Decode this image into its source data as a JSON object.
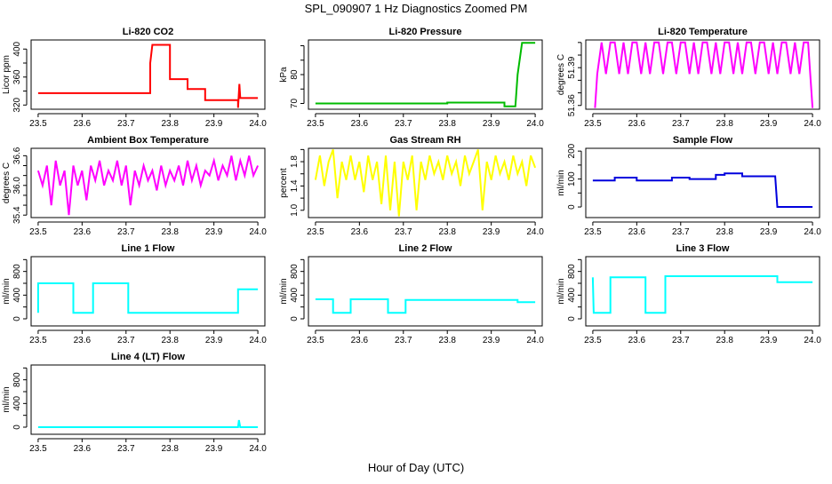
{
  "title": "SPL_090907  1 Hz Diagnostics Zoomed PM",
  "xlabel": "Hour of Day (UTC)",
  "chart_data": [
    {
      "type": "line",
      "title": "Li-820 CO2",
      "ylabel": "Licor ppm",
      "color": "#ff0000",
      "ylim": [
        314,
        413
      ],
      "yticks": [
        320,
        340,
        360,
        380,
        400
      ],
      "ytick_labels": [
        "320",
        "",
        "360",
        "",
        "400"
      ],
      "x": [
        23.5,
        23.755,
        23.755,
        23.76,
        23.8,
        23.8,
        23.84,
        23.84,
        23.88,
        23.88,
        23.955,
        23.955,
        23.958,
        23.96,
        24.0
      ],
      "y": [
        337,
        337,
        380,
        406,
        406,
        357,
        357,
        343,
        343,
        327,
        327,
        316,
        350,
        330,
        330
      ]
    },
    {
      "type": "line",
      "title": "Li-820 Pressure",
      "ylabel": "kPa",
      "color": "#00bb00",
      "ylim": [
        68,
        92
      ],
      "yticks": [
        70,
        75,
        80,
        85,
        90
      ],
      "ytick_labels": [
        "70",
        "",
        "80",
        "",
        ""
      ],
      "x": [
        23.5,
        23.8,
        23.8,
        23.93,
        23.93,
        23.955,
        23.96,
        23.97,
        24.0
      ],
      "y": [
        70,
        70,
        70.3,
        70.3,
        69,
        69,
        80,
        91,
        91
      ]
    },
    {
      "type": "line",
      "title": "Li-820 Temperature",
      "ylabel": "degrees C",
      "color": "#ff00ff",
      "ylim": [
        51.357,
        51.412
      ],
      "yticks": [
        51.36,
        51.37,
        51.38,
        51.39,
        51.4,
        51.41
      ],
      "ytick_labels": [
        "51.36",
        "",
        "",
        "51.39",
        "",
        ""
      ],
      "x": [
        23.505,
        23.51,
        23.52,
        23.53,
        23.54,
        23.55,
        23.56,
        23.57,
        23.58,
        23.59,
        23.6,
        23.61,
        23.62,
        23.63,
        23.64,
        23.65,
        23.66,
        23.67,
        23.68,
        23.69,
        23.7,
        23.71,
        23.72,
        23.73,
        23.74,
        23.75,
        23.76,
        23.77,
        23.78,
        23.79,
        23.8,
        23.81,
        23.82,
        23.83,
        23.84,
        23.85,
        23.86,
        23.87,
        23.88,
        23.89,
        23.9,
        23.91,
        23.92,
        23.93,
        23.94,
        23.95,
        23.96,
        23.97,
        23.98,
        23.99,
        24.0
      ],
      "y": [
        51.358,
        51.385,
        51.41,
        51.385,
        51.41,
        51.41,
        51.385,
        51.41,
        51.385,
        51.41,
        51.41,
        51.385,
        51.41,
        51.385,
        51.41,
        51.41,
        51.385,
        51.41,
        51.41,
        51.385,
        51.41,
        51.41,
        51.385,
        51.41,
        51.385,
        51.41,
        51.41,
        51.385,
        51.41,
        51.385,
        51.41,
        51.41,
        51.385,
        51.41,
        51.385,
        51.41,
        51.41,
        51.385,
        51.41,
        51.41,
        51.385,
        51.41,
        51.385,
        51.41,
        51.41,
        51.385,
        51.41,
        51.385,
        51.41,
        51.41,
        51.358
      ]
    },
    {
      "type": "line",
      "title": "Ambient Box Temperature",
      "ylabel": "degrees C",
      "color": "#ff00ff",
      "ylim": [
        35.35,
        36.75
      ],
      "yticks": [
        35.4,
        35.6,
        35.8,
        36.0,
        36.2,
        36.4,
        36.6
      ],
      "ytick_labels": [
        "35.4",
        "",
        "",
        "36.0",
        "",
        "",
        "36.6"
      ],
      "x": [
        23.5,
        23.51,
        23.52,
        23.53,
        23.54,
        23.55,
        23.56,
        23.57,
        23.58,
        23.59,
        23.6,
        23.61,
        23.62,
        23.63,
        23.64,
        23.65,
        23.66,
        23.67,
        23.68,
        23.69,
        23.7,
        23.71,
        23.72,
        23.73,
        23.74,
        23.75,
        23.76,
        23.77,
        23.78,
        23.79,
        23.8,
        23.81,
        23.82,
        23.83,
        23.84,
        23.85,
        23.86,
        23.87,
        23.88,
        23.89,
        23.9,
        23.91,
        23.92,
        23.93,
        23.94,
        23.95,
        23.96,
        23.97,
        23.98,
        23.99,
        24.0
      ],
      "y": [
        36.3,
        36.0,
        36.4,
        35.6,
        36.5,
        36.0,
        36.3,
        35.4,
        36.4,
        36.0,
        36.3,
        35.7,
        36.4,
        36.1,
        36.5,
        36.0,
        36.3,
        36.1,
        36.5,
        36.0,
        36.4,
        35.6,
        36.3,
        36.0,
        36.4,
        36.1,
        36.3,
        35.9,
        36.4,
        36.0,
        36.3,
        36.1,
        36.4,
        36.0,
        36.5,
        36.1,
        36.4,
        36.0,
        36.3,
        36.2,
        36.5,
        36.1,
        36.4,
        36.2,
        36.6,
        36.1,
        36.5,
        36.2,
        36.6,
        36.2,
        36.4
      ]
    },
    {
      "type": "line",
      "title": "Gas Stream RH",
      "ylabel": "percent",
      "color": "#ffff00",
      "ylim": [
        0.88,
        2.02
      ],
      "yticks": [
        1.0,
        1.2,
        1.4,
        1.6,
        1.8,
        2.0
      ],
      "ytick_labels": [
        "1.0",
        "",
        "1.4",
        "",
        "1.8",
        ""
      ],
      "x": [
        23.5,
        23.51,
        23.52,
        23.53,
        23.54,
        23.55,
        23.56,
        23.57,
        23.58,
        23.59,
        23.6,
        23.61,
        23.62,
        23.63,
        23.64,
        23.65,
        23.66,
        23.67,
        23.68,
        23.69,
        23.7,
        23.71,
        23.72,
        23.73,
        23.74,
        23.75,
        23.76,
        23.77,
        23.78,
        23.79,
        23.8,
        23.81,
        23.82,
        23.83,
        23.84,
        23.85,
        23.86,
        23.87,
        23.88,
        23.89,
        23.9,
        23.91,
        23.92,
        23.93,
        23.94,
        23.95,
        23.96,
        23.97,
        23.98,
        23.99,
        24.0
      ],
      "y": [
        1.5,
        1.9,
        1.4,
        1.8,
        2.0,
        1.2,
        1.8,
        1.5,
        1.9,
        1.5,
        1.8,
        1.3,
        1.9,
        1.5,
        1.8,
        1.1,
        1.9,
        1.0,
        1.8,
        0.9,
        1.8,
        1.5,
        1.9,
        1.0,
        1.8,
        1.5,
        1.9,
        1.6,
        1.8,
        1.5,
        1.9,
        1.6,
        1.8,
        1.4,
        1.9,
        1.6,
        1.8,
        2.0,
        1.0,
        1.8,
        1.5,
        1.9,
        1.6,
        1.8,
        1.5,
        1.9,
        1.6,
        1.8,
        1.4,
        1.9,
        1.7
      ]
    },
    {
      "type": "line",
      "title": "Sample Flow",
      "ylabel": "ml/min",
      "color": "#0000dd",
      "ylim": [
        -38,
        210
      ],
      "yticks": [
        0,
        50,
        100,
        150,
        200
      ],
      "ytick_labels": [
        "0",
        "",
        "100",
        "",
        "200"
      ],
      "x": [
        23.5,
        23.55,
        23.55,
        23.6,
        23.6,
        23.68,
        23.68,
        23.72,
        23.72,
        23.78,
        23.78,
        23.8,
        23.8,
        23.84,
        23.84,
        23.915,
        23.92,
        24.0
      ],
      "y": [
        95,
        95,
        105,
        105,
        95,
        95,
        105,
        105,
        100,
        100,
        115,
        115,
        120,
        120,
        110,
        110,
        0,
        0
      ]
    },
    {
      "type": "line",
      "title": "Line 1 Flow",
      "ylabel": "ml/min",
      "color": "#00ffff",
      "ylim": [
        -120,
        1050
      ],
      "yticks": [
        0,
        200,
        400,
        600,
        800,
        1000
      ],
      "ytick_labels": [
        "0",
        "",
        "400",
        "",
        "800",
        ""
      ],
      "x": [
        23.5,
        23.5,
        23.58,
        23.58,
        23.625,
        23.625,
        23.705,
        23.705,
        23.955,
        23.955,
        24.0
      ],
      "y": [
        100,
        600,
        600,
        100,
        100,
        600,
        600,
        100,
        100,
        500,
        500
      ]
    },
    {
      "type": "line",
      "title": "Line 2 Flow",
      "ylabel": "ml/min",
      "color": "#00ffff",
      "ylim": [
        -120,
        1050
      ],
      "yticks": [
        0,
        200,
        400,
        600,
        800,
        1000
      ],
      "ytick_labels": [
        "0",
        "",
        "400",
        "",
        "800",
        ""
      ],
      "x": [
        23.5,
        23.54,
        23.54,
        23.58,
        23.58,
        23.665,
        23.665,
        23.705,
        23.705,
        23.96,
        23.96,
        24.0
      ],
      "y": [
        330,
        330,
        100,
        100,
        330,
        330,
        100,
        100,
        320,
        320,
        280,
        280
      ]
    },
    {
      "type": "line",
      "title": "Line 3 Flow",
      "ylabel": "ml/min",
      "color": "#00ffff",
      "ylim": [
        -120,
        1050
      ],
      "yticks": [
        0,
        200,
        400,
        600,
        800,
        1000
      ],
      "ytick_labels": [
        "0",
        "",
        "400",
        "",
        "800",
        ""
      ],
      "x": [
        23.5,
        23.5,
        23.502,
        23.54,
        23.54,
        23.62,
        23.62,
        23.665,
        23.665,
        23.92,
        23.92,
        24.0
      ],
      "y": [
        700,
        700,
        100,
        100,
        700,
        700,
        100,
        100,
        720,
        720,
        620,
        620
      ]
    },
    {
      "type": "line",
      "title": "Line 4 (LT) Flow",
      "ylabel": "ml/min",
      "color": "#00ffff",
      "ylim": [
        -120,
        1050
      ],
      "yticks": [
        0,
        200,
        400,
        600,
        800,
        1000
      ],
      "ytick_labels": [
        "0",
        "",
        "400",
        "",
        "800",
        ""
      ],
      "x": [
        23.5,
        23.955,
        23.957,
        23.96,
        24.0
      ],
      "y": [
        0,
        0,
        120,
        0,
        0
      ]
    }
  ],
  "xticks": [
    23.5,
    23.6,
    23.7,
    23.8,
    23.9,
    24.0
  ],
  "xtick_labels": [
    "23.5",
    "23.6",
    "23.7",
    "23.8",
    "23.9",
    "24.0"
  ],
  "xlim": [
    23.484,
    24.016
  ]
}
